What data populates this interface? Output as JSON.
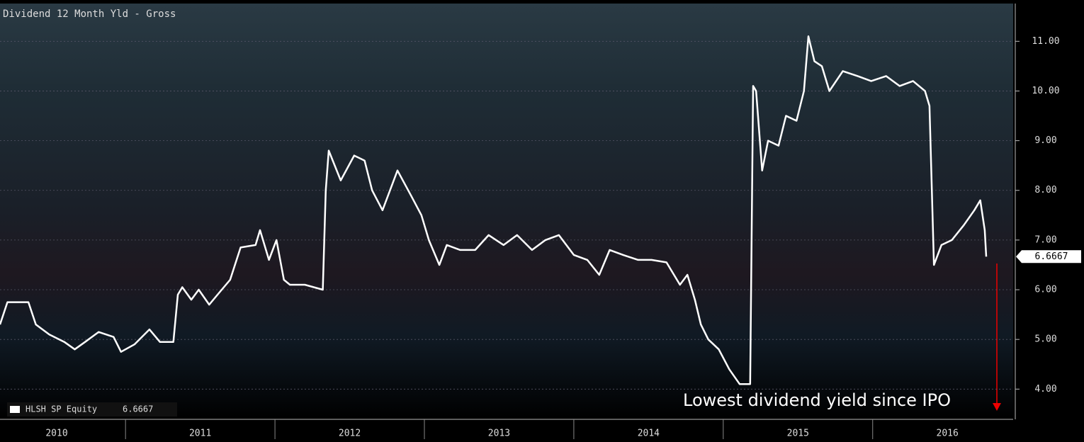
{
  "chart_data": {
    "type": "line",
    "title": "Dividend 12 Month Yld - Gross",
    "annotation": "Lowest dividend yield since IPO",
    "x": [
      2010.16,
      2010.21,
      2010.35,
      2010.4,
      2010.49,
      2010.59,
      2010.66,
      2010.73,
      2010.82,
      2010.92,
      2010.97,
      2011.06,
      2011.16,
      2011.23,
      2011.32,
      2011.35,
      2011.38,
      2011.44,
      2011.49,
      2011.56,
      2011.63,
      2011.7,
      2011.77,
      2011.87,
      2011.9,
      2011.96,
      2012.01,
      2012.06,
      2012.1,
      2012.2,
      2012.32,
      2012.34,
      2012.36,
      2012.44,
      2012.53,
      2012.6,
      2012.65,
      2012.72,
      2012.82,
      2012.91,
      2012.98,
      2013.03,
      2013.1,
      2013.15,
      2013.24,
      2013.34,
      2013.43,
      2013.53,
      2013.62,
      2013.72,
      2013.81,
      2013.9,
      2014.0,
      2014.09,
      2014.17,
      2014.24,
      2014.33,
      2014.43,
      2014.52,
      2014.62,
      2014.71,
      2014.76,
      2014.81,
      2014.85,
      2014.9,
      2014.97,
      2015.04,
      2015.11,
      2015.18,
      2015.2,
      2015.22,
      2015.26,
      2015.3,
      2015.37,
      2015.42,
      2015.49,
      2015.54,
      2015.57,
      2015.61,
      2015.66,
      2015.71,
      2015.8,
      2015.9,
      2015.99,
      2016.09,
      2016.18,
      2016.27,
      2016.35,
      2016.38,
      2016.41,
      2016.46,
      2016.53,
      2016.61,
      2016.68,
      2016.72,
      2016.75,
      2016.76
    ],
    "series": [
      {
        "name": "HLSH SP Equity",
        "color": "#ffffff",
        "values": [
          5.3,
          5.75,
          5.75,
          5.3,
          5.1,
          4.95,
          4.8,
          4.95,
          5.15,
          5.05,
          4.75,
          4.9,
          5.2,
          4.95,
          4.95,
          5.9,
          6.05,
          5.8,
          6.0,
          5.7,
          5.95,
          6.2,
          6.85,
          6.9,
          7.2,
          6.6,
          7.0,
          6.2,
          6.1,
          6.1,
          6.0,
          8.0,
          8.8,
          8.2,
          8.7,
          8.6,
          8.0,
          7.6,
          8.4,
          7.9,
          7.5,
          7.0,
          6.5,
          6.9,
          6.8,
          6.8,
          7.1,
          6.9,
          7.1,
          6.8,
          7.0,
          7.1,
          6.7,
          6.6,
          6.3,
          6.8,
          6.7,
          6.6,
          6.6,
          6.55,
          6.1,
          6.3,
          5.8,
          5.3,
          5.0,
          4.8,
          4.4,
          4.1,
          4.1,
          10.1,
          10.0,
          8.4,
          9.0,
          8.9,
          9.5,
          9.4,
          10.0,
          11.1,
          10.6,
          10.5,
          10.0,
          10.4,
          10.3,
          10.2,
          10.3,
          10.1,
          10.2,
          10.0,
          9.7,
          6.5,
          6.9,
          7.0,
          7.3,
          7.6,
          7.8,
          7.2,
          6.6667
        ]
      }
    ],
    "xlim": [
      2010.16,
      2016.94
    ],
    "xticks": [
      2010,
      2011,
      2012,
      2013,
      2014,
      2015,
      2016
    ],
    "ylim": [
      3.42,
      11.76
    ],
    "yticks": [
      {
        "value": 4,
        "label": "4.00"
      },
      {
        "value": 5,
        "label": "5.00"
      },
      {
        "value": 6,
        "label": "6.00"
      },
      {
        "value": 7,
        "label": "7.00"
      },
      {
        "value": 8,
        "label": "8.00"
      },
      {
        "value": 9,
        "label": "9.00"
      },
      {
        "value": 10,
        "label": "10.00"
      },
      {
        "value": 11,
        "label": "11.00"
      }
    ],
    "grid": true
  }
}
